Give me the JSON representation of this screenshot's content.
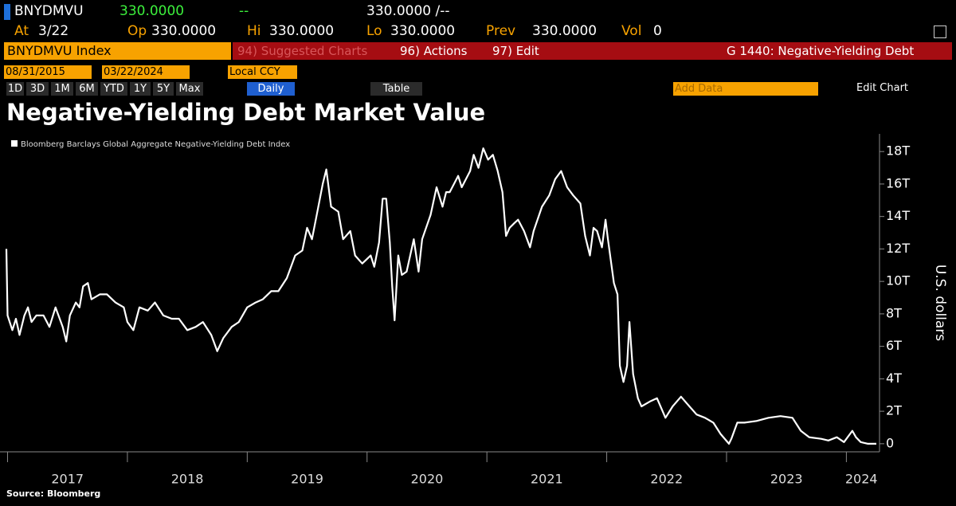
{
  "header": {
    "ticker": "BNYDMVU",
    "last": "330.0000",
    "change": "--",
    "bid_ask": "330.0000 /--",
    "at_label": "At",
    "at_value": "3/22",
    "op_label": "Op",
    "op_value": "330.0000",
    "hi_label": "Hi",
    "hi_value": "330.0000",
    "lo_label": "Lo",
    "lo_value": "330.0000",
    "prev_label": "Prev",
    "prev_value": "330.0000",
    "vol_label": "Vol",
    "vol_value": "0"
  },
  "toolbar": {
    "security": "BNYDMVU Index",
    "suggested": "94) Suggested Charts",
    "actions": "96) Actions",
    "edit": "97) Edit",
    "chart_name": "G 1440: Negative-Yielding Debt"
  },
  "controls": {
    "start_date": "08/31/2015",
    "end_date": "03/22/2024",
    "currency": "Local CCY",
    "ranges": [
      "1D",
      "3D",
      "1M",
      "6M",
      "YTD",
      "1Y",
      "5Y",
      "Max"
    ],
    "frequency": "Daily",
    "table": "Table",
    "add_data": "Add Data",
    "edit_chart": "Edit Chart"
  },
  "chart_data": {
    "type": "line",
    "title": "Negative-Yielding Debt Market Value",
    "y_label": "U.S. dollars",
    "source": "Source: Bloomberg",
    "x": [
      2016.99,
      2017.0,
      2017.04,
      2017.07,
      2017.1,
      2017.14,
      2017.17,
      2017.2,
      2017.24,
      2017.3,
      2017.35,
      2017.4,
      2017.46,
      2017.49,
      2017.52,
      2017.57,
      2017.6,
      2017.63,
      2017.67,
      2017.7,
      2017.77,
      2017.83,
      2017.9,
      2017.97,
      2018.0,
      2018.05,
      2018.1,
      2018.17,
      2018.23,
      2018.3,
      2018.37,
      2018.43,
      2018.5,
      2018.57,
      2018.63,
      2018.7,
      2018.75,
      2018.8,
      2018.87,
      2018.93,
      2019.0,
      2019.07,
      2019.13,
      2019.2,
      2019.26,
      2019.33,
      2019.4,
      2019.46,
      2019.5,
      2019.54,
      2019.58,
      2019.63,
      2019.66,
      2019.7,
      2019.76,
      2019.8,
      2019.86,
      2019.9,
      2019.96,
      2020.03,
      2020.06,
      2020.1,
      2020.13,
      2020.16,
      2020.19,
      2020.21,
      2020.23,
      2020.26,
      2020.29,
      2020.33,
      2020.36,
      2020.39,
      2020.43,
      2020.46,
      2020.53,
      2020.58,
      2020.63,
      2020.66,
      2020.69,
      2020.76,
      2020.79,
      2020.86,
      2020.89,
      2020.93,
      2020.97,
      2021.01,
      2021.05,
      2021.09,
      2021.13,
      2021.16,
      2021.19,
      2021.23,
      2021.26,
      2021.31,
      2021.36,
      2021.39,
      2021.46,
      2021.52,
      2021.57,
      2021.62,
      2021.67,
      2021.72,
      2021.78,
      2021.82,
      2021.86,
      2021.89,
      2021.92,
      2021.96,
      2021.99,
      2022.01,
      2022.06,
      2022.09,
      2022.11,
      2022.14,
      2022.17,
      2022.19,
      2022.22,
      2022.26,
      2022.29,
      2022.36,
      2022.42,
      2022.49,
      2022.55,
      2022.62,
      2022.69,
      2022.75,
      2022.82,
      2022.89,
      2022.95,
      2023.02,
      2023.04,
      2023.09,
      2023.15,
      2023.25,
      2023.35,
      2023.45,
      2023.55,
      2023.62,
      2023.69,
      2023.79,
      2023.85,
      2023.92,
      2023.98,
      2024.05,
      2024.08,
      2024.12,
      2024.18,
      2024.25
    ],
    "series": [
      {
        "name": "Bloomberg Barclays Global Aggregate Negative-Yielding Debt Index",
        "color": "#ffffff",
        "values": [
          12.0,
          7.9,
          7.0,
          7.7,
          6.7,
          7.9,
          8.4,
          7.5,
          7.9,
          7.9,
          7.2,
          8.4,
          7.2,
          6.3,
          7.9,
          8.7,
          8.4,
          9.7,
          9.9,
          8.9,
          9.2,
          9.2,
          8.7,
          8.4,
          7.5,
          7.0,
          8.4,
          8.2,
          8.7,
          7.9,
          7.7,
          7.7,
          7.0,
          7.2,
          7.5,
          6.7,
          5.7,
          6.5,
          7.2,
          7.5,
          8.4,
          8.7,
          8.9,
          9.4,
          9.4,
          10.2,
          11.6,
          11.9,
          13.3,
          12.6,
          14.1,
          16.0,
          16.9,
          14.6,
          14.3,
          12.6,
          13.1,
          11.6,
          11.1,
          11.6,
          10.9,
          12.4,
          15.1,
          15.1,
          12.4,
          9.7,
          7.6,
          11.6,
          10.4,
          10.6,
          11.6,
          12.6,
          10.6,
          12.6,
          14.1,
          15.8,
          14.6,
          15.5,
          15.5,
          16.5,
          15.8,
          16.8,
          17.8,
          17.0,
          18.2,
          17.5,
          17.8,
          16.8,
          15.5,
          12.8,
          13.3,
          13.6,
          13.8,
          13.1,
          12.1,
          13.1,
          14.6,
          15.3,
          16.3,
          16.8,
          15.8,
          15.3,
          14.8,
          12.8,
          11.6,
          13.3,
          13.1,
          12.1,
          13.8,
          12.6,
          9.9,
          9.2,
          4.8,
          3.8,
          4.8,
          7.5,
          4.3,
          2.8,
          2.3,
          2.6,
          2.8,
          1.6,
          2.3,
          2.9,
          2.3,
          1.8,
          1.6,
          1.3,
          0.6,
          0.0,
          0.3,
          1.3,
          1.3,
          1.4,
          1.6,
          1.7,
          1.6,
          0.8,
          0.4,
          0.3,
          0.2,
          0.4,
          0.1,
          0.8,
          0.4,
          0.1,
          0.0,
          0.0
        ]
      }
    ],
    "xlim": [
      2016.99,
      2024.25
    ],
    "xticks": [
      2017,
      2018,
      2019,
      2020,
      2021,
      2022,
      2023,
      2024
    ],
    "ylim": [
      -0.4,
      18.5
    ],
    "yticks": [
      0,
      {
        "value": 2,
        "label": "2T"
      },
      {
        "value": 4,
        "label": "4T"
      },
      {
        "value": 6,
        "label": "6T"
      },
      {
        "value": 8,
        "label": "8T"
      },
      {
        "value": 10,
        "label": "10T"
      },
      {
        "value": 12,
        "label": "12T"
      },
      {
        "value": 14,
        "label": "14T"
      },
      {
        "value": 16,
        "label": "16T"
      },
      {
        "value": 18,
        "label": "18T"
      }
    ]
  }
}
